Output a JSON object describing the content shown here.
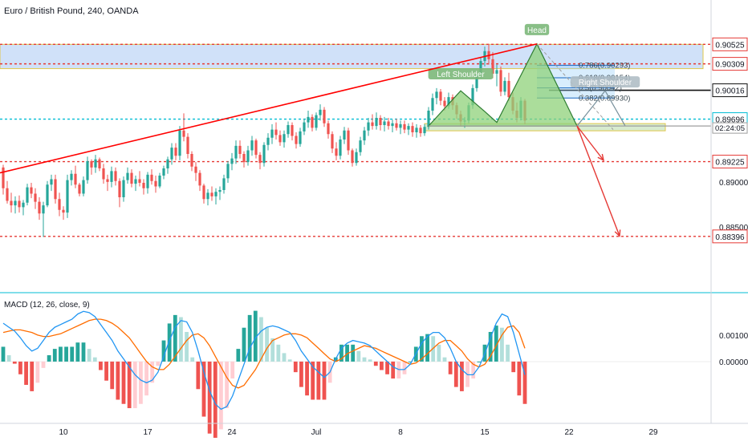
{
  "header": {
    "symbol_title": "Euro / British Pound, 240, OANDA"
  },
  "macd_title": "MACD (12, 26, close, 9)",
  "colors": {
    "bull": "#26a69a",
    "bear": "#ef5350",
    "trendline": "#ff0000",
    "zone_fill": "#c8dcf8",
    "pattern_fill": "#8fd17a",
    "pattern_stroke": "#2e7d32",
    "macd_line": "#2196f3",
    "signal_line": "#ff6d00"
  },
  "chart_data": [
    {
      "type": "candlestick",
      "title": "Euro / British Pound, 240, OANDA",
      "ylim": [
        0.8795,
        0.9075
      ],
      "x_tick_labels": [
        "10",
        "17",
        "24",
        "Jul",
        "8",
        "15",
        "22",
        "29"
      ],
      "price_labels": [
        {
          "value": 0.90525,
          "text": "0.90525",
          "style": "red-box"
        },
        {
          "value": 0.90309,
          "text": "0.90309",
          "style": "red-box"
        },
        {
          "value": 0.90016,
          "text": "0.90016",
          "style": "black-box"
        },
        {
          "value": 0.89696,
          "text": "0.89696",
          "style": "cyan-box"
        },
        {
          "value": 0.89225,
          "text": "0.89225",
          "style": "red-box"
        },
        {
          "value": 0.88396,
          "text": "0.88396",
          "style": "red-box"
        }
      ],
      "axis_labels": [
        {
          "value": 0.89,
          "text": "0.89000"
        },
        {
          "value": 0.885,
          "text": "0.88500"
        }
      ],
      "countdown_label": "02:24:05",
      "horizontal_levels": [
        {
          "value": 0.90525,
          "style": "dotted-red"
        },
        {
          "value": 0.90309,
          "style": "dotted-red"
        },
        {
          "value": 0.89696,
          "style": "dotted-cyan"
        },
        {
          "value": 0.89225,
          "style": "dotted-red"
        },
        {
          "value": 0.88396,
          "style": "dotted-red"
        }
      ],
      "fib_levels": [
        {
          "ratio": "0.786",
          "value": 0.90293,
          "text": "0.786(0.90293)"
        },
        {
          "ratio": "0.618",
          "value": 0.90154,
          "text": "0.618(0.90154)"
        },
        {
          "ratio": "0.5",
          "value": 0.90042,
          "text": "0.5(0.90042)"
        },
        {
          "ratio": "0.382",
          "value": 0.8993,
          "text": "0.382(0.89930)"
        }
      ],
      "pattern_labels": [
        "Left Shoulder",
        "Head",
        "Right Shoulder"
      ],
      "candles": [
        [
          0.8916,
          0.8919,
          0.8886,
          0.8893
        ],
        [
          0.8893,
          0.8901,
          0.8876,
          0.8879
        ],
        [
          0.8879,
          0.8888,
          0.8866,
          0.8874
        ],
        [
          0.8874,
          0.8884,
          0.8865,
          0.8879
        ],
        [
          0.8879,
          0.8885,
          0.8866,
          0.8872
        ],
        [
          0.8872,
          0.888,
          0.8863,
          0.8877
        ],
        [
          0.8877,
          0.8898,
          0.8874,
          0.8894
        ],
        [
          0.8894,
          0.8899,
          0.8882,
          0.8887
        ],
        [
          0.8887,
          0.8893,
          0.887,
          0.8878
        ],
        [
          0.8878,
          0.8883,
          0.8858,
          0.8865
        ],
        [
          0.8865,
          0.8878,
          0.8839,
          0.8874
        ],
        [
          0.8874,
          0.8901,
          0.8872,
          0.8897
        ],
        [
          0.8897,
          0.8908,
          0.889,
          0.8903
        ],
        [
          0.8903,
          0.8908,
          0.8876,
          0.8881
        ],
        [
          0.8881,
          0.8888,
          0.8862,
          0.8869
        ],
        [
          0.8869,
          0.8873,
          0.8858,
          0.8866
        ],
        [
          0.8866,
          0.8908,
          0.886,
          0.8902
        ],
        [
          0.8902,
          0.8913,
          0.8896,
          0.8909
        ],
        [
          0.8909,
          0.8918,
          0.8893,
          0.8897
        ],
        [
          0.8897,
          0.8899,
          0.8884,
          0.8887
        ],
        [
          0.8887,
          0.8906,
          0.8884,
          0.8902
        ],
        [
          0.8902,
          0.8928,
          0.8898,
          0.8923
        ],
        [
          0.8923,
          0.8925,
          0.8908,
          0.8916
        ],
        [
          0.8916,
          0.893,
          0.891,
          0.8925
        ],
        [
          0.8925,
          0.8927,
          0.8912,
          0.8915
        ],
        [
          0.8915,
          0.892,
          0.8898,
          0.8903
        ],
        [
          0.8903,
          0.8908,
          0.889,
          0.89
        ],
        [
          0.89,
          0.8917,
          0.8894,
          0.8912
        ],
        [
          0.8912,
          0.8916,
          0.8896,
          0.8901
        ],
        [
          0.8901,
          0.8904,
          0.8872,
          0.8883
        ],
        [
          0.8883,
          0.8906,
          0.8878,
          0.8902
        ],
        [
          0.8902,
          0.8916,
          0.8898,
          0.891
        ],
        [
          0.891,
          0.8914,
          0.8894,
          0.8898
        ],
        [
          0.8898,
          0.8907,
          0.889,
          0.8903
        ],
        [
          0.8903,
          0.8912,
          0.8895,
          0.8899
        ],
        [
          0.8899,
          0.8903,
          0.8886,
          0.8893
        ],
        [
          0.8893,
          0.8911,
          0.8887,
          0.8908
        ],
        [
          0.8908,
          0.8914,
          0.8897,
          0.8901
        ],
        [
          0.8901,
          0.8907,
          0.8888,
          0.8895
        ],
        [
          0.8895,
          0.891,
          0.8893,
          0.8907
        ],
        [
          0.8907,
          0.8918,
          0.8903,
          0.8915
        ],
        [
          0.8915,
          0.8928,
          0.8909,
          0.8925
        ],
        [
          0.8925,
          0.8943,
          0.8919,
          0.8938
        ],
        [
          0.8938,
          0.8943,
          0.8924,
          0.8929
        ],
        [
          0.8929,
          0.8962,
          0.8924,
          0.8957
        ],
        [
          0.8957,
          0.8976,
          0.8945,
          0.895
        ],
        [
          0.895,
          0.8954,
          0.8926,
          0.8931
        ],
        [
          0.8931,
          0.8934,
          0.8912,
          0.8917
        ],
        [
          0.8917,
          0.8922,
          0.8901,
          0.891
        ],
        [
          0.891,
          0.8913,
          0.889,
          0.8896
        ],
        [
          0.8896,
          0.8898,
          0.8876,
          0.8881
        ],
        [
          0.8881,
          0.8892,
          0.8874,
          0.8888
        ],
        [
          0.8888,
          0.8895,
          0.8879,
          0.8884
        ],
        [
          0.8884,
          0.8893,
          0.8875,
          0.8889
        ],
        [
          0.8889,
          0.8895,
          0.888,
          0.8891
        ],
        [
          0.8891,
          0.8908,
          0.8887,
          0.8904
        ],
        [
          0.8904,
          0.8923,
          0.8899,
          0.892
        ],
        [
          0.892,
          0.8932,
          0.8913,
          0.8926
        ],
        [
          0.8926,
          0.8946,
          0.892,
          0.894
        ],
        [
          0.894,
          0.8946,
          0.8926,
          0.8931
        ],
        [
          0.8931,
          0.8934,
          0.8916,
          0.8922
        ],
        [
          0.8922,
          0.894,
          0.8918,
          0.8935
        ],
        [
          0.8935,
          0.8951,
          0.8929,
          0.8946
        ],
        [
          0.8946,
          0.8948,
          0.8926,
          0.893
        ],
        [
          0.893,
          0.8933,
          0.8914,
          0.8921
        ],
        [
          0.8921,
          0.8944,
          0.8917,
          0.8941
        ],
        [
          0.8941,
          0.8954,
          0.8935,
          0.8949
        ],
        [
          0.8949,
          0.8964,
          0.8942,
          0.8958
        ],
        [
          0.8958,
          0.8966,
          0.8947,
          0.8952
        ],
        [
          0.8952,
          0.8957,
          0.894,
          0.8944
        ],
        [
          0.8944,
          0.8957,
          0.8938,
          0.8953
        ],
        [
          0.8953,
          0.8967,
          0.8949,
          0.8963
        ],
        [
          0.8963,
          0.8966,
          0.8946,
          0.8951
        ],
        [
          0.8951,
          0.8955,
          0.8937,
          0.8942
        ],
        [
          0.8942,
          0.896,
          0.8939,
          0.8956
        ],
        [
          0.8956,
          0.897,
          0.8952,
          0.8966
        ],
        [
          0.8966,
          0.8979,
          0.896,
          0.8972
        ],
        [
          0.8972,
          0.8975,
          0.8956,
          0.896
        ],
        [
          0.896,
          0.8977,
          0.8957,
          0.8974
        ],
        [
          0.8974,
          0.8986,
          0.8968,
          0.898
        ],
        [
          0.898,
          0.8983,
          0.8961,
          0.8965
        ],
        [
          0.8965,
          0.8968,
          0.8948,
          0.8953
        ],
        [
          0.8953,
          0.8956,
          0.8932,
          0.8937
        ],
        [
          0.8937,
          0.8944,
          0.8924,
          0.8929
        ],
        [
          0.8929,
          0.8951,
          0.8925,
          0.8947
        ],
        [
          0.8947,
          0.8961,
          0.8942,
          0.8957
        ],
        [
          0.8957,
          0.896,
          0.893,
          0.8935
        ],
        [
          0.8935,
          0.8937,
          0.8917,
          0.8921
        ],
        [
          0.8921,
          0.8937,
          0.8918,
          0.8933
        ],
        [
          0.8933,
          0.895,
          0.8929,
          0.8946
        ],
        [
          0.8946,
          0.8961,
          0.8941,
          0.8957
        ],
        [
          0.8957,
          0.8971,
          0.8951,
          0.8966
        ],
        [
          0.8966,
          0.8975,
          0.8958,
          0.8962
        ],
        [
          0.8962,
          0.8977,
          0.8958,
          0.8971
        ],
        [
          0.8971,
          0.8974,
          0.8957,
          0.8963
        ],
        [
          0.8963,
          0.8972,
          0.8956,
          0.8967
        ],
        [
          0.8967,
          0.8971,
          0.8958,
          0.8962
        ],
        [
          0.8962,
          0.8969,
          0.8955,
          0.8965
        ],
        [
          0.8965,
          0.897,
          0.8957,
          0.896
        ],
        [
          0.896,
          0.8968,
          0.8953,
          0.8964
        ],
        [
          0.8964,
          0.8968,
          0.8954,
          0.8958
        ],
        [
          0.8958,
          0.8965,
          0.8952,
          0.8962
        ],
        [
          0.8962,
          0.8966,
          0.895,
          0.8955
        ],
        [
          0.8955,
          0.8964,
          0.8949,
          0.896
        ],
        [
          0.896,
          0.8963,
          0.895,
          0.8954
        ],
        [
          0.8954,
          0.8964,
          0.8951,
          0.8961
        ],
        [
          0.8961,
          0.8983,
          0.8958,
          0.8979
        ],
        [
          0.8979,
          0.8998,
          0.8974,
          0.8993
        ],
        [
          0.8993,
          0.9004,
          0.8986,
          0.9
        ],
        [
          0.9,
          0.9003,
          0.8985,
          0.899
        ],
        [
          0.899,
          0.8994,
          0.8979,
          0.8984
        ],
        [
          0.8984,
          0.8999,
          0.8981,
          0.8994
        ],
        [
          0.8994,
          0.8997,
          0.898,
          0.8985
        ],
        [
          0.8985,
          0.8988,
          0.897,
          0.8975
        ],
        [
          0.8975,
          0.8979,
          0.8962,
          0.8967
        ],
        [
          0.8967,
          0.8972,
          0.896,
          0.8968
        ],
        [
          0.8968,
          0.8988,
          0.8965,
          0.8985
        ],
        [
          0.8985,
          0.9008,
          0.8981,
          0.9004
        ],
        [
          0.9004,
          0.9023,
          0.9,
          0.9019
        ],
        [
          0.9019,
          0.9038,
          0.9015,
          0.9034
        ],
        [
          0.9034,
          0.905,
          0.9028,
          0.9045
        ],
        [
          0.9045,
          0.9053,
          0.903,
          0.9036
        ],
        [
          0.9036,
          0.9044,
          0.9015,
          0.902
        ],
        [
          0.902,
          0.903,
          0.9006,
          0.9024
        ],
        [
          0.9024,
          0.9028,
          0.8995,
          0.9
        ],
        [
          0.9,
          0.9016,
          0.8996,
          0.9012
        ],
        [
          0.9012,
          0.9021,
          0.899,
          0.8994
        ],
        [
          0.8994,
          0.8999,
          0.8975,
          0.8979
        ],
        [
          0.8979,
          0.8988,
          0.8966,
          0.8971
        ],
        [
          0.8971,
          0.8994,
          0.8968,
          0.899
        ],
        [
          0.899,
          0.8992,
          0.8964,
          0.8968
        ]
      ],
      "x_tick_candle_index": [
        15,
        36,
        57,
        78,
        99,
        120,
        141,
        162
      ]
    },
    {
      "type": "macd",
      "title": "MACD (12, 26, close, 9)",
      "ylim": [
        -0.00185,
        0.00215
      ],
      "y_tick_labels": [
        {
          "value": 0.001,
          "text": "0.00100"
        },
        {
          "value": 0.0,
          "text": "0.00000"
        }
      ],
      "macd": [
        0.00145,
        0.0013,
        0.00115,
        0.0009,
        0.0006,
        0.0004,
        0.0005,
        0.0008,
        0.0011,
        0.0013,
        0.0014,
        0.0015,
        0.0016,
        0.0018,
        0.0019,
        0.00185,
        0.0017,
        0.0014,
        0.0011,
        0.0008,
        0.0004,
        0.0001,
        -0.0002,
        -0.0005,
        -0.0007,
        -0.0008,
        -0.0007,
        -0.0004,
        0.0002,
        0.0008,
        0.0013,
        0.00155,
        0.0015,
        0.0011,
        0.0004,
        -0.0004,
        -0.0011,
        -0.0016,
        -0.0018,
        -0.0017,
        -0.0013,
        -0.0007,
        -0.0001,
        0.0005,
        0.0009,
        0.00115,
        0.0013,
        0.00135,
        0.0013,
        0.0012,
        0.0011,
        0.0008,
        0.0004,
        0.0001,
        -0.0002,
        -0.0004,
        -0.0006,
        -0.0004,
        0.0001,
        0.0005,
        0.0007,
        0.0008,
        0.00075,
        0.0007,
        0.0006,
        0.0004,
        0.0002,
        0.0,
        -0.0002,
        -0.0003,
        -0.0003,
        -0.0001,
        0.0003,
        0.0007,
        0.00095,
        0.0011,
        0.0011,
        0.0009,
        0.0005,
        0.0,
        -0.0003,
        -0.0005,
        -0.0005,
        -0.0002,
        0.0003,
        0.0009,
        0.00145,
        0.0018,
        0.0017,
        0.0011,
        0.0003,
        -0.0005
      ],
      "signal": [
        0.0011,
        0.00115,
        0.0012,
        0.0012,
        0.00115,
        0.0011,
        0.001,
        0.00095,
        0.00095,
        0.001,
        0.00105,
        0.00115,
        0.00125,
        0.00135,
        0.00145,
        0.00155,
        0.0016,
        0.0016,
        0.00155,
        0.00145,
        0.0013,
        0.0011,
        0.0009,
        0.0006,
        0.0003,
        0.0,
        -0.0002,
        -0.0003,
        -0.0003,
        -0.0001,
        0.0002,
        0.0005,
        0.0008,
        0.001,
        0.00105,
        0.0009,
        0.0006,
        0.0002,
        -0.0002,
        -0.0006,
        -0.0009,
        -0.001,
        -0.0009,
        -0.0006,
        -0.0003,
        0.0001,
        0.0005,
        0.0008,
        0.0009,
        0.001,
        0.00105,
        0.00105,
        0.001,
        0.0009,
        0.0007,
        0.0005,
        0.0003,
        0.0001,
        0.0,
        0.0001,
        0.0003,
        0.0004,
        0.0005,
        0.0006,
        0.00055,
        0.0005,
        0.0004,
        0.0003,
        0.0002,
        0.0001,
        0.0,
        -0.0001,
        -5e-05,
        0.0001,
        0.0003,
        0.0005,
        0.0007,
        0.0008,
        0.0008,
        0.0006,
        0.0004,
        0.0001,
        -0.0001,
        -0.0002,
        -0.0001,
        0.0002,
        0.0006,
        0.001,
        0.0013,
        0.00135,
        0.0011,
        0.0005
      ]
    }
  ]
}
